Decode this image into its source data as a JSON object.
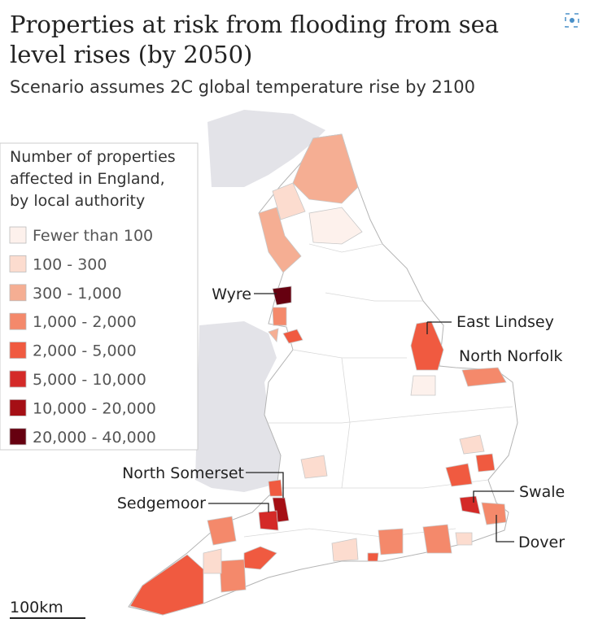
{
  "header": {
    "title_lines": [
      "Properties at risk from flooding from sea",
      "level rises (by 2050)"
    ],
    "subtitle": "Scenario assumes 2C global temperature rise by 2100"
  },
  "legend": {
    "title_lines": [
      "Number of properties",
      "affected in England,",
      "by local authority"
    ],
    "items": [
      {
        "label": "Fewer than 100",
        "color": "#fdf1ec"
      },
      {
        "label": "100 - 300",
        "color": "#fcdccf"
      },
      {
        "label": "300 - 1,000",
        "color": "#f5ae93"
      },
      {
        "label": "1,000 - 2,000",
        "color": "#f4896b"
      },
      {
        "label": "2,000 - 5,000",
        "color": "#f05a40"
      },
      {
        "label": "5,000 - 10,000",
        "color": "#d42a28"
      },
      {
        "label": "10,000 - 20,000",
        "color": "#a50f15"
      },
      {
        "label": "20,000 - 40,000",
        "color": "#660010"
      }
    ]
  },
  "annotations": [
    "Wyre",
    "East Lindsey",
    "North Norfolk",
    "North Somerset",
    "Sedgemoor",
    "Swale",
    "Dover"
  ],
  "scale_bar": "100km"
}
